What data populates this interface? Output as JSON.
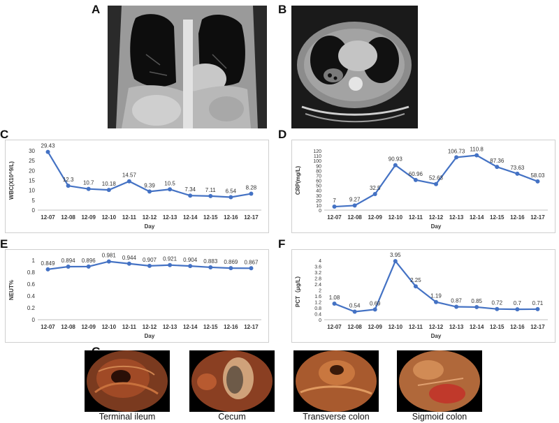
{
  "panels": {
    "a": "A",
    "b": "B",
    "c": "C",
    "d": "D",
    "e": "E",
    "f": "F",
    "g": "G"
  },
  "colors": {
    "series": "#4472C4",
    "axis": "#bfbfbf",
    "ct_bg": "#1b1b1b"
  },
  "chart_data": [
    {
      "id": "C",
      "type": "line",
      "categories": [
        "12-07",
        "12-08",
        "12-09",
        "12-10",
        "12-11",
        "12-12",
        "12-13",
        "12-14",
        "12-15",
        "12-16",
        "12-17"
      ],
      "values": [
        29.43,
        12.3,
        10.7,
        10.18,
        14.57,
        9.39,
        10.5,
        7.34,
        7.11,
        6.54,
        8.28
      ],
      "value_labels": [
        "29.43",
        "12.3",
        "10.7",
        "10.18",
        "14.57",
        "9.39",
        "10.5",
        "7.34",
        "7.11",
        "6.54",
        "8.28"
      ],
      "yticks": [
        "0",
        "5",
        "10",
        "15",
        "20",
        "25",
        "30"
      ],
      "ylim": [
        0,
        30
      ],
      "ylabel": "WBC(X10^9/L)",
      "xlabel": "Day"
    },
    {
      "id": "D",
      "type": "line",
      "categories": [
        "12-07",
        "12-08",
        "12-09",
        "12-10",
        "12-11",
        "12-12",
        "12-13",
        "12-14",
        "12-15",
        "12-16",
        "12-17"
      ],
      "values": [
        7,
        9.27,
        32.5,
        90.93,
        60.96,
        52.63,
        106.73,
        110.8,
        87.36,
        73.63,
        58.03
      ],
      "value_labels": [
        "7",
        "9.27",
        "32.5",
        "90.93",
        "60.96",
        "52.63",
        "106.73",
        "110.8",
        "87.36",
        "73.63",
        "58.03"
      ],
      "yticks": [
        "0",
        "10",
        "20",
        "30",
        "40",
        "50",
        "60",
        "70",
        "80",
        "90",
        "100",
        "110",
        "120"
      ],
      "ylim": [
        0,
        120
      ],
      "ylabel": "CRP(mg/L)",
      "xlabel": "Day"
    },
    {
      "id": "E",
      "type": "line",
      "categories": [
        "12-07",
        "12-08",
        "12-09",
        "12-10",
        "12-11",
        "12-12",
        "12-13",
        "12-14",
        "12-15",
        "12-16",
        "12-17"
      ],
      "values": [
        0.849,
        0.894,
        0.896,
        0.981,
        0.944,
        0.907,
        0.921,
        0.904,
        0.883,
        0.869,
        0.867
      ],
      "value_labels": [
        "0.849",
        "0.894",
        "0.896",
        "0.981",
        "0.944",
        "0.907",
        "0.921",
        "0.904",
        "0.883",
        "0.869",
        "0.867"
      ],
      "yticks": [
        "0",
        "0.2",
        "0.4",
        "0.6",
        "0.8",
        "1"
      ],
      "ylim": [
        0,
        1
      ],
      "ylabel": "NEUT%",
      "xlabel": "Day"
    },
    {
      "id": "F",
      "type": "line",
      "categories": [
        "12-07",
        "12-08",
        "12-09",
        "12-10",
        "12-11",
        "12-12",
        "12-13",
        "12-14",
        "12-15",
        "12-16",
        "12-17"
      ],
      "values": [
        1.08,
        0.54,
        0.69,
        3.95,
        2.25,
        1.19,
        0.87,
        0.85,
        0.72,
        0.7,
        0.71
      ],
      "value_labels": [
        "1.08",
        "0.54",
        "0.69",
        "3.95",
        "2.25",
        "1.19",
        "0.87",
        "0.85",
        "0.72",
        "0.7",
        "0.71"
      ],
      "yticks": [
        "0",
        "0.4",
        "0.8",
        "1.2",
        "1.6",
        "2",
        "2.4",
        "2.8",
        "3.2",
        "3.6",
        "4"
      ],
      "ylim": [
        0,
        4
      ],
      "ylabel": "PCT（μg/L）",
      "xlabel": "Day"
    }
  ],
  "endoscopy": [
    {
      "label": "Terminal ileum"
    },
    {
      "label": "Cecum"
    },
    {
      "label": "Transverse colon"
    },
    {
      "label": "Sigmoid colon"
    }
  ]
}
